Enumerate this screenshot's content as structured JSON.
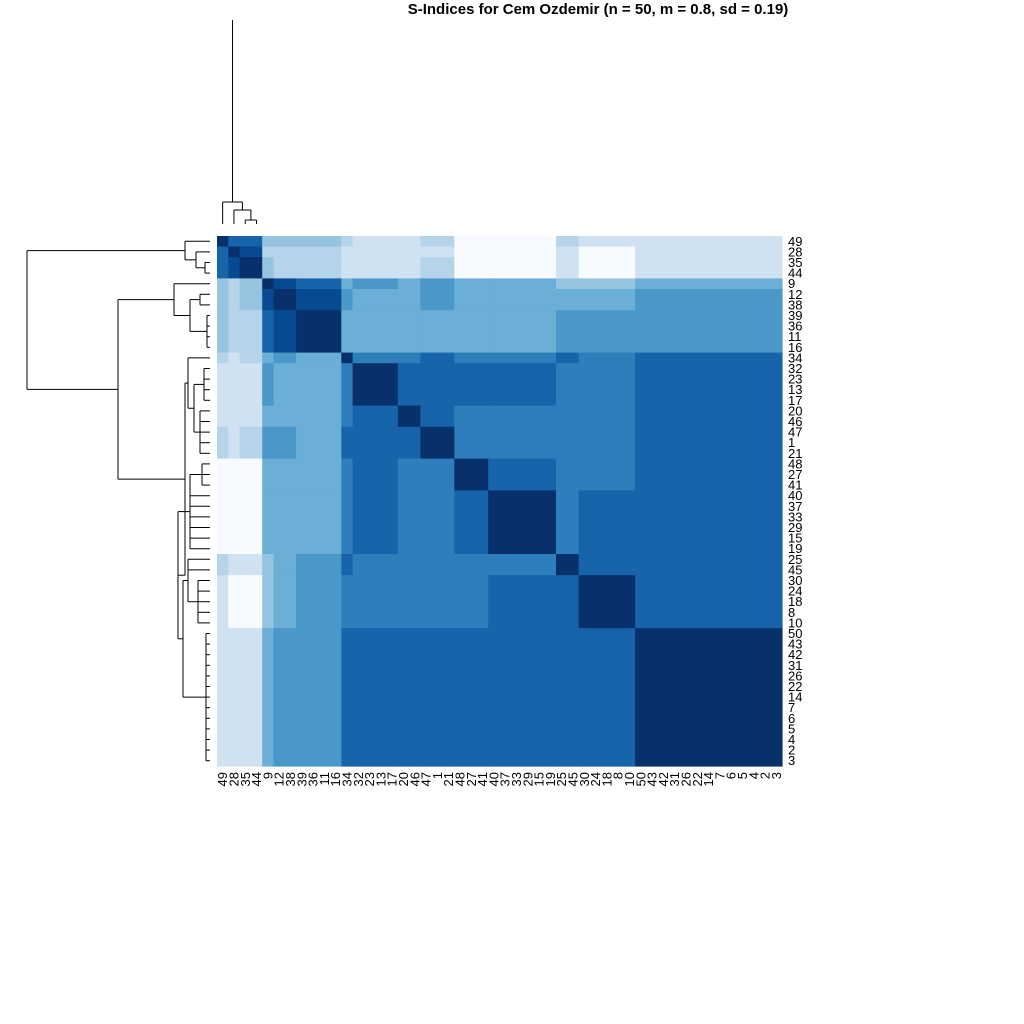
{
  "chart_data": {
    "type": "heatmap",
    "title": "S-Indices for Cem Ozdemir (n = 50, m = 0.8, sd = 0.19)",
    "order": [
      "49",
      "28",
      "35",
      "44",
      "9",
      "12",
      "38",
      "39",
      "36",
      "11",
      "16",
      "34",
      "32",
      "23",
      "13",
      "17",
      "20",
      "46",
      "47",
      "1",
      "21",
      "48",
      "27",
      "41",
      "40",
      "37",
      "33",
      "29",
      "15",
      "19",
      "25",
      "45",
      "30",
      "24",
      "18",
      "8",
      "10",
      "50",
      "43",
      "42",
      "31",
      "26",
      "22",
      "14",
      "7",
      "6",
      "5",
      "4",
      "2",
      "3"
    ],
    "row_labels": [
      "49",
      "28",
      "35",
      "44",
      "9",
      "12",
      "38",
      "39",
      "36",
      "11",
      "16",
      "34",
      "32",
      "23",
      "13",
      "17",
      "20",
      "46",
      "47",
      "1",
      "21",
      "48",
      "27",
      "41",
      "40",
      "37",
      "33",
      "29",
      "15",
      "19",
      "25",
      "45",
      "30",
      "24",
      "18",
      "8",
      "10",
      "50",
      "43",
      "42",
      "31",
      "26",
      "22",
      "14",
      "7",
      "6",
      "5",
      "4",
      "2",
      "3"
    ],
    "col_labels": [
      "49",
      "28",
      "35",
      "44",
      "9",
      "12",
      "38",
      "39",
      "36",
      "11",
      "16",
      "34",
      "32",
      "23",
      "13",
      "17",
      "20",
      "46",
      "47",
      "1",
      "21",
      "48",
      "27",
      "41",
      "40",
      "37",
      "33",
      "29",
      "15",
      "19",
      "25",
      "45",
      "30",
      "24",
      "18",
      "8",
      "10",
      "50",
      "43",
      "42",
      "31",
      "26",
      "22",
      "14",
      "7",
      "6",
      "5",
      "4",
      "2",
      "3"
    ],
    "groups": [
      {
        "members": [
          "49"
        ],
        "size": 1
      },
      {
        "members": [
          "28"
        ],
        "size": 1
      },
      {
        "members": [
          "35",
          "44"
        ],
        "size": 2
      },
      {
        "members": [
          "9"
        ],
        "size": 1
      },
      {
        "members": [
          "12",
          "38"
        ],
        "size": 2
      },
      {
        "members": [
          "39",
          "36",
          "11",
          "16"
        ],
        "size": 4
      },
      {
        "members": [
          "34"
        ],
        "size": 1
      },
      {
        "members": [
          "32",
          "23",
          "13",
          "17"
        ],
        "size": 4
      },
      {
        "members": [
          "20",
          "46"
        ],
        "size": 2
      },
      {
        "members": [
          "47",
          "1",
          "21"
        ],
        "size": 3
      },
      {
        "members": [
          "48",
          "27",
          "41"
        ],
        "size": 3
      },
      {
        "members": [
          "40",
          "37",
          "33",
          "29",
          "15",
          "19"
        ],
        "size": 6
      },
      {
        "members": [
          "25",
          "45"
        ],
        "size": 2
      },
      {
        "members": [
          "30",
          "24",
          "18",
          "8",
          "10"
        ],
        "size": 5
      },
      {
        "members": [
          "50",
          "43",
          "42",
          "31",
          "26",
          "22",
          "14",
          "7",
          "6",
          "5",
          "4",
          "2",
          "3"
        ],
        "size": 13
      }
    ],
    "group_values": [
      [
        1.0,
        0.8,
        0.8,
        0.4,
        0.4,
        0.4,
        0.3,
        0.2,
        0.2,
        0.3,
        0.0,
        0.0,
        0.3,
        0.2,
        0.2
      ],
      [
        0.8,
        1.0,
        0.9,
        0.3,
        0.3,
        0.3,
        0.2,
        0.2,
        0.2,
        0.2,
        0.0,
        0.0,
        0.2,
        0.0,
        0.2
      ],
      [
        0.8,
        0.9,
        1.0,
        0.4,
        0.3,
        0.3,
        0.2,
        0.2,
        0.2,
        0.3,
        0.0,
        0.0,
        0.2,
        0.0,
        0.2
      ],
      [
        0.4,
        0.3,
        0.4,
        1.0,
        0.9,
        0.8,
        0.5,
        0.6,
        0.5,
        0.6,
        0.5,
        0.5,
        0.4,
        0.4,
        0.5
      ],
      [
        0.4,
        0.3,
        0.4,
        0.9,
        1.0,
        0.9,
        0.6,
        0.5,
        0.5,
        0.6,
        0.5,
        0.5,
        0.5,
        0.5,
        0.6
      ],
      [
        0.4,
        0.3,
        0.3,
        0.8,
        0.9,
        1.0,
        0.5,
        0.5,
        0.5,
        0.5,
        0.5,
        0.5,
        0.6,
        0.6,
        0.6
      ],
      [
        0.3,
        0.2,
        0.3,
        0.5,
        0.6,
        0.5,
        1.0,
        0.7,
        0.7,
        0.8,
        0.7,
        0.7,
        0.8,
        0.7,
        0.8
      ],
      [
        0.2,
        0.2,
        0.2,
        0.6,
        0.5,
        0.5,
        0.7,
        1.0,
        0.8,
        0.8,
        0.8,
        0.8,
        0.7,
        0.7,
        0.8
      ],
      [
        0.2,
        0.2,
        0.2,
        0.5,
        0.5,
        0.5,
        0.7,
        0.8,
        1.0,
        0.8,
        0.7,
        0.7,
        0.7,
        0.7,
        0.8
      ],
      [
        0.3,
        0.2,
        0.3,
        0.6,
        0.6,
        0.5,
        0.8,
        0.8,
        0.8,
        1.0,
        0.7,
        0.7,
        0.7,
        0.7,
        0.8
      ],
      [
        0.0,
        0.0,
        0.0,
        0.5,
        0.5,
        0.5,
        0.7,
        0.8,
        0.7,
        0.7,
        1.0,
        0.8,
        0.7,
        0.7,
        0.8
      ],
      [
        0.0,
        0.0,
        0.0,
        0.5,
        0.5,
        0.5,
        0.7,
        0.8,
        0.7,
        0.7,
        0.8,
        1.0,
        0.7,
        0.8,
        0.8
      ],
      [
        0.3,
        0.2,
        0.2,
        0.4,
        0.5,
        0.6,
        0.8,
        0.7,
        0.7,
        0.7,
        0.7,
        0.7,
        1.0,
        0.8,
        0.8
      ],
      [
        0.2,
        0.0,
        0.0,
        0.4,
        0.5,
        0.6,
        0.7,
        0.7,
        0.7,
        0.7,
        0.7,
        0.8,
        0.8,
        1.0,
        0.8
      ],
      [
        0.2,
        0.2,
        0.2,
        0.5,
        0.6,
        0.6,
        0.8,
        0.8,
        0.8,
        0.8,
        0.8,
        0.8,
        0.8,
        0.8,
        1.0
      ]
    ],
    "color_scale": {
      "low": "#f7fbff",
      "high": "#08306b",
      "stops": [
        "#f7fbff",
        "#deebf7",
        "#c6dbef",
        "#9ecae1",
        "#6baed6",
        "#4292c6",
        "#2171b5",
        "#08519c",
        "#08306b"
      ]
    },
    "dendrogram": "both",
    "legend": "none"
  }
}
